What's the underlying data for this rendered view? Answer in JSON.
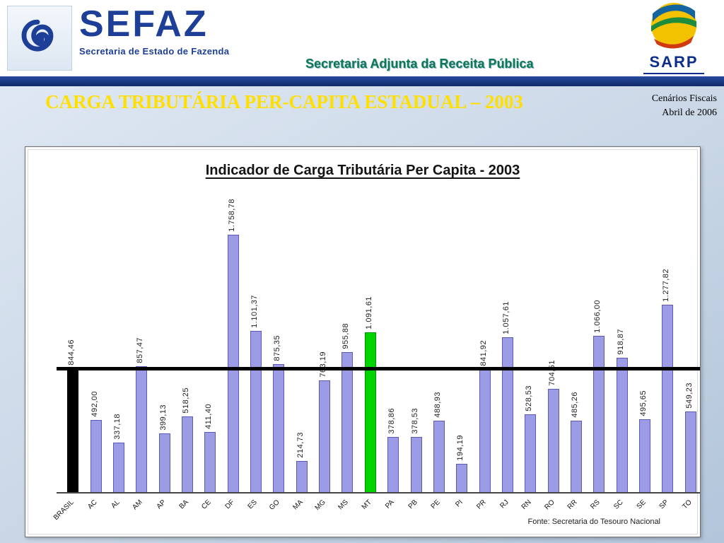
{
  "header": {
    "sefaz": {
      "name": "SEFAZ",
      "subtitle": "Secretaria de Estado de Fazenda"
    },
    "center_title": "Secretaria Adjunta da Receita Pública",
    "sarp": {
      "label": "SARP"
    }
  },
  "title_bar": {
    "title": "CARGA TRIBUTÁRIA PER-CAPITA ESTADUAL – 2003",
    "right_line1": "Cenários Fiscais",
    "right_line2": "Abril de 2006"
  },
  "chart_data": {
    "type": "bar",
    "title": "Indicador de Carga Tributária Per Capita - 2003",
    "source": "Fonte: Secretaria do Tesouro Nacional",
    "categories": [
      "BRASIL",
      "AC",
      "AL",
      "AM",
      "AP",
      "BA",
      "CE",
      "DF",
      "ES",
      "GO",
      "MA",
      "MG",
      "MS",
      "MT",
      "PA",
      "PB",
      "PE",
      "PI",
      "PR",
      "RJ",
      "RN",
      "RO",
      "RR",
      "RS",
      "SC",
      "SE",
      "SP",
      "TO"
    ],
    "values": [
      844.46,
      492.0,
      337.18,
      857.47,
      399.13,
      518.25,
      411.4,
      1758.78,
      1101.37,
      875.35,
      214.73,
      763.19,
      955.88,
      1091.61,
      378.86,
      378.53,
      488.93,
      194.19,
      841.92,
      1057.61,
      528.53,
      704.51,
      485.26,
      1066.0,
      918.87,
      495.65,
      1277.82,
      549.23
    ],
    "value_labels": [
      "844,46",
      "492,00",
      "337,18",
      "857,47",
      "399,13",
      "518,25",
      "411,40",
      "1.758,78",
      "1.101,37",
      "875,35",
      "214,73",
      "763,19",
      "955,88",
      "1.091,61",
      "378,86",
      "378,53",
      "488,93",
      "194,19",
      "841,92",
      "1.057,61",
      "528,53",
      "704,51",
      "485,26",
      "1.066,00",
      "918,87",
      "495,65",
      "1.277,82",
      "549,23"
    ],
    "ylim": [
      0,
      1800
    ],
    "grid": false,
    "legend": "none",
    "reference_line": {
      "value": 844.46,
      "series": "BRASIL",
      "color": "#000000"
    },
    "colors": {
      "default": "#9b9be6",
      "BRASIL": "#000000",
      "MT": "#00d400"
    },
    "border_colors": {
      "default": "#5a5ab4",
      "BRASIL": "#000000",
      "MT": "#0a8f0a"
    }
  }
}
